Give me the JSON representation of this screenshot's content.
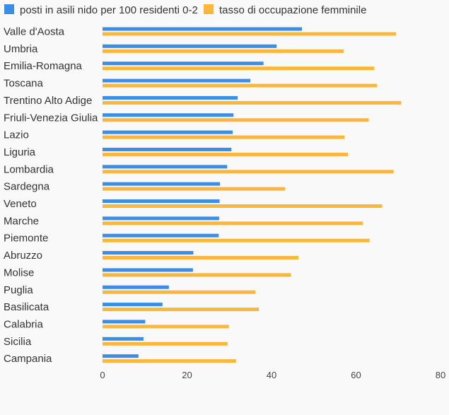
{
  "chart_data": {
    "type": "bar",
    "orientation": "horizontal",
    "title": "",
    "xlabel": "",
    "ylabel": "",
    "xlim": [
      0,
      80
    ],
    "x_ticks": [
      0,
      20,
      40,
      60,
      80
    ],
    "grid": false,
    "legend_position": "top-left",
    "categories": [
      "Valle d'Aosta",
      "Umbria",
      "Emilia-Romagna",
      "Toscana",
      "Trentino Alto Adige",
      "Friuli-Venezia Giulia",
      "Lazio",
      "Liguria",
      "Lombardia",
      "Sardegna",
      "Veneto",
      "Marche",
      "Piemonte",
      "Abruzzo",
      "Molise",
      "Puglia",
      "Basilicata",
      "Calabria",
      "Sicilia",
      "Campania"
    ],
    "series": [
      {
        "name": "posti in asili nido per 100 residenti 0-2",
        "color": "#3b8ee6",
        "values": [
          47.2,
          41.2,
          38.1,
          35.0,
          32.0,
          31.0,
          30.8,
          30.5,
          29.5,
          27.8,
          27.7,
          27.6,
          27.5,
          21.5,
          21.4,
          15.7,
          14.2,
          10.1,
          9.7,
          8.5
        ]
      },
      {
        "name": "tasso di occupazione femminile",
        "color": "#fbb73b",
        "values": [
          69.5,
          57.1,
          64.3,
          65.0,
          70.7,
          63.0,
          57.3,
          58.1,
          68.9,
          43.2,
          66.2,
          61.6,
          63.2,
          46.4,
          44.6,
          36.2,
          37.0,
          29.9,
          29.6,
          31.6
        ]
      }
    ]
  }
}
